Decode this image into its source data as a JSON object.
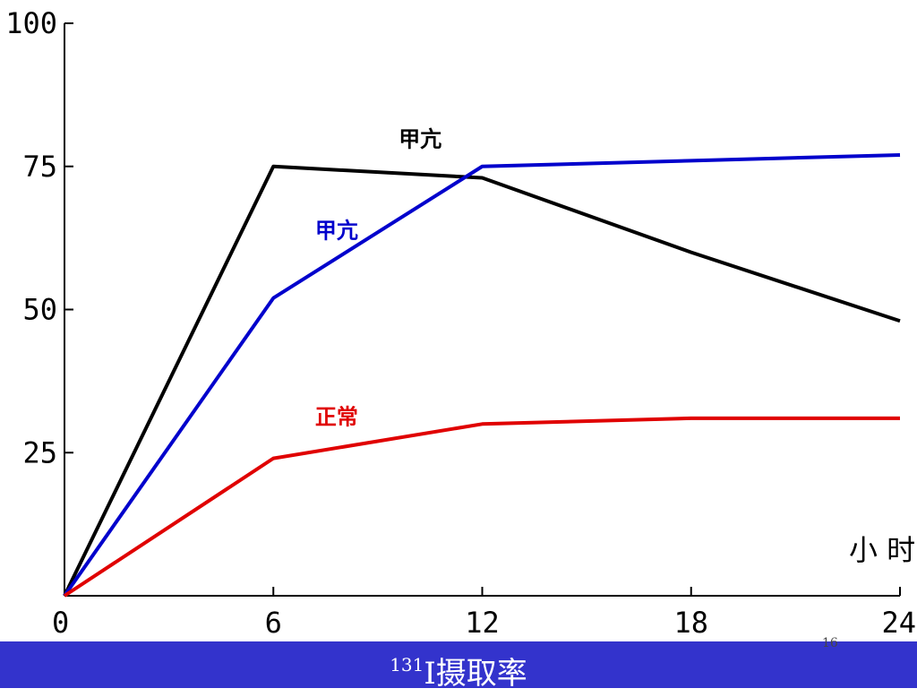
{
  "colors": {
    "background": "#ffffff",
    "footer_bar": "#3333cc",
    "footer_text": "#ffffff"
  },
  "footer": {
    "title_sup": "131",
    "title_main": "I摄取率",
    "page_number": "16"
  },
  "chart_data": {
    "type": "line",
    "title": "",
    "xlabel": "小 时",
    "ylabel": "",
    "xlim": [
      0,
      24
    ],
    "ylim": [
      0,
      100
    ],
    "x_ticks": [
      0,
      6,
      12,
      18,
      24
    ],
    "x_tick_labels": [
      "0",
      "6",
      "12",
      "18",
      "24"
    ],
    "y_ticks": [
      25,
      50,
      75,
      100
    ],
    "y_tick_labels": [
      "25",
      "50",
      "75",
      "100"
    ],
    "grid": false,
    "series": [
      {
        "name": "甲亢",
        "color": "#000000",
        "label_at": [
          9.6,
          78.5
        ],
        "x": [
          0,
          6,
          12,
          18,
          24
        ],
        "y": [
          0,
          75,
          73,
          60,
          48
        ]
      },
      {
        "name": "甲亢",
        "color": "#0000cc",
        "label_at": [
          7.2,
          62.5
        ],
        "x": [
          0,
          6,
          12,
          18,
          24
        ],
        "y": [
          0,
          52,
          75,
          76,
          77
        ]
      },
      {
        "name": "正常",
        "color": "#e00000",
        "label_at": [
          7.2,
          30
        ],
        "x": [
          0,
          6,
          12,
          18,
          24
        ],
        "y": [
          0,
          24,
          30,
          31,
          31
        ]
      }
    ]
  }
}
